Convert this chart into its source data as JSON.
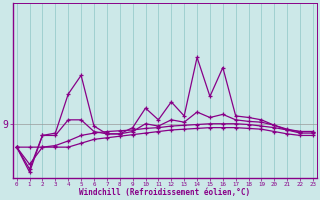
{
  "background_color": "#cce8e8",
  "plot_bg_color": "#cce8e8",
  "line_color": "#880088",
  "grid_color": "#99cccc",
  "xlabel": "Windchill (Refroidissement éolien,°C)",
  "xlim_left": -0.3,
  "xlim_right": 23.3,
  "ylim_bottom": 8.3,
  "ylim_top": 10.55,
  "ytick_pos": 9.0,
  "ytick_label": "9",
  "s1": [
    8.7,
    8.7,
    8.7,
    8.7,
    8.7,
    8.75,
    8.8,
    8.82,
    8.84,
    8.86,
    8.88,
    8.9,
    8.92,
    8.93,
    8.94,
    8.95,
    8.95,
    8.95,
    8.94,
    8.93,
    8.9,
    8.87,
    8.85,
    8.85
  ],
  "s2": [
    8.7,
    8.48,
    8.7,
    8.72,
    8.78,
    8.85,
    8.88,
    8.9,
    8.91,
    8.92,
    8.94,
    8.95,
    8.97,
    8.98,
    8.99,
    9.0,
    9.0,
    9.0,
    8.99,
    8.97,
    8.95,
    8.92,
    8.9,
    8.9
  ],
  "s3": [
    8.7,
    8.42,
    8.85,
    8.85,
    9.05,
    9.05,
    8.9,
    8.87,
    8.87,
    8.9,
    9.0,
    8.97,
    9.05,
    9.02,
    9.15,
    9.08,
    9.12,
    9.05,
    9.03,
    9.02,
    8.98,
    8.93,
    8.9,
    8.9
  ],
  "s4": [
    8.7,
    8.38,
    8.85,
    8.88,
    9.38,
    9.62,
    8.97,
    8.87,
    8.87,
    8.95,
    9.2,
    9.05,
    9.28,
    9.1,
    9.85,
    9.35,
    9.72,
    9.1,
    9.08,
    9.05,
    8.98,
    8.92,
    8.88,
    8.88
  ]
}
